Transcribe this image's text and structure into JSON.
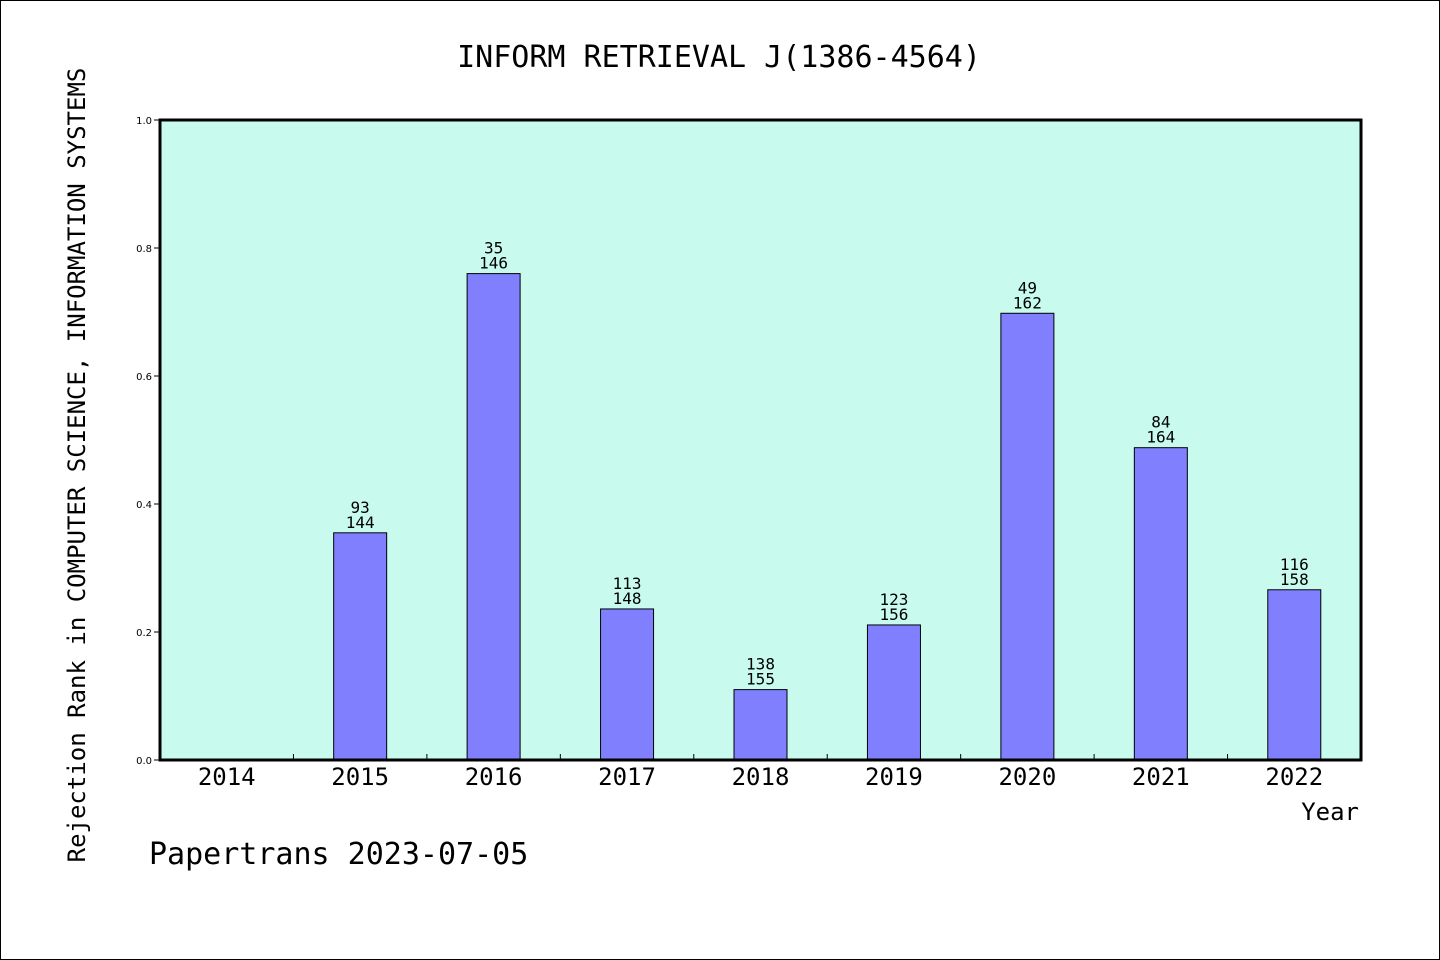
{
  "chart_data": {
    "type": "bar",
    "title": "INFORM RETRIEVAL J(1386-4564)",
    "xlabel": "Year",
    "ylabel": "Rejection Rank in COMPUTER SCIENCE, INFORMATION SYSTEMS",
    "ylim": [
      0,
      1.0
    ],
    "yticks": [
      "0.0",
      "0.2",
      "0.4",
      "0.6",
      "0.8",
      "1.0"
    ],
    "categories": [
      "2014",
      "2015",
      "2016",
      "2017",
      "2018",
      "2019",
      "2020",
      "2021",
      "2022"
    ],
    "values": [
      null,
      0.355,
      0.76,
      0.236,
      0.11,
      0.211,
      0.698,
      0.488,
      0.266
    ],
    "label_top": [
      null,
      "93",
      "35",
      "113",
      "138",
      "123",
      "49",
      "84",
      "116"
    ],
    "label_bottom": [
      null,
      "144",
      "146",
      "148",
      "155",
      "156",
      "162",
      "164",
      "158"
    ],
    "grid": false,
    "colors": {
      "plot_bg": "#c8fbee",
      "bar": "#8080ff",
      "bar_edge": "#000000"
    }
  },
  "footer": "Papertrans 2023-07-05"
}
